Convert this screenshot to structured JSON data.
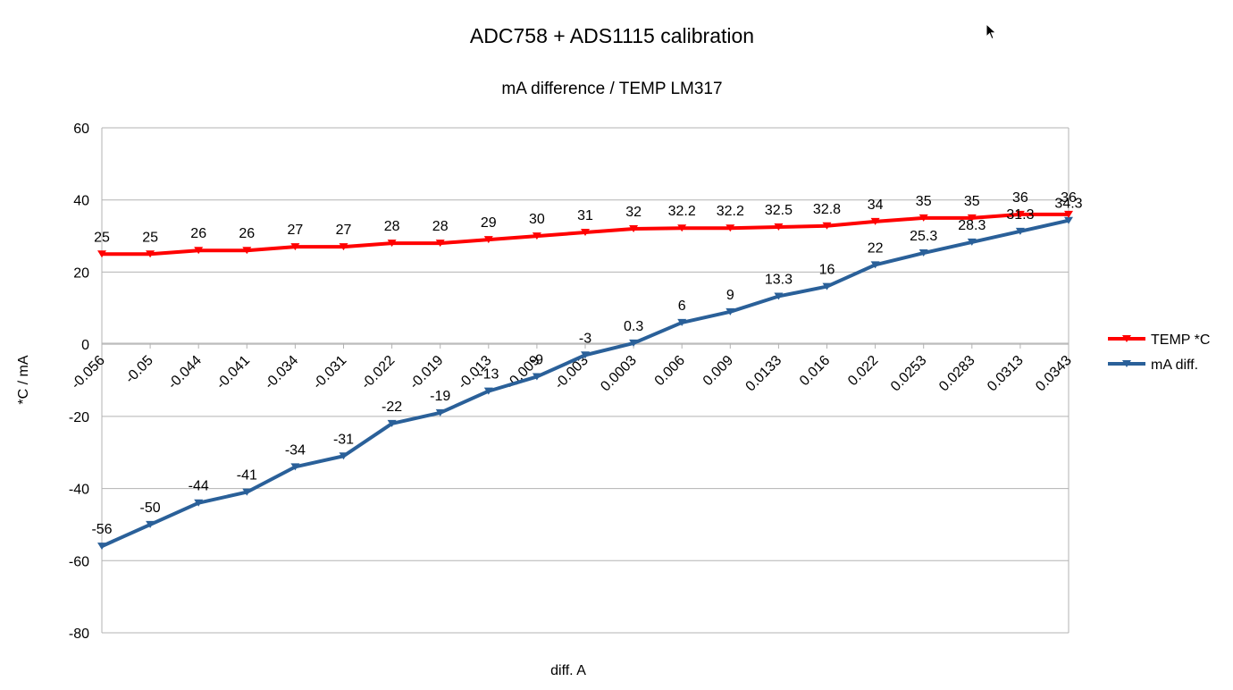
{
  "chart_data": {
    "type": "line",
    "title": "ADC758 + ADS1115 calibration",
    "subtitle": "mA difference / TEMP LM317",
    "xlabel": "diff. A",
    "ylabel": "*C / mA",
    "ylim": [
      -80,
      60
    ],
    "yticks": [
      "60",
      "40",
      "20",
      "0",
      "-20",
      "-40",
      "-60",
      "-80"
    ],
    "ytick_values": [
      60,
      40,
      20,
      0,
      -20,
      -40,
      -60,
      -80
    ],
    "categories": [
      "-0.056",
      "-0.05",
      "-0.044",
      "-0.041",
      "-0.034",
      "-0.031",
      "-0.022",
      "-0.019",
      "-0.013",
      "-0.009",
      "-0.003",
      "0.0003",
      "0.006",
      "0.009",
      "0.0133",
      "0.016",
      "0.022",
      "0.0253",
      "0.0283",
      "0.0313",
      "0.0343"
    ],
    "grid": true,
    "legend_position": "right",
    "series": [
      {
        "name": "TEMP *C",
        "color": "#ff0000",
        "values": [
          25,
          25,
          26,
          26,
          27,
          27,
          28,
          28,
          29,
          30,
          31,
          32,
          32.2,
          32.2,
          32.5,
          32.8,
          34,
          35,
          35,
          36,
          36
        ],
        "labels": [
          "25",
          "25",
          "26",
          "26",
          "27",
          "27",
          "28",
          "28",
          "29",
          "30",
          "31",
          "32",
          "32.2",
          "32.2",
          "32.5",
          "32.8",
          "34",
          "35",
          "35",
          "36",
          "36"
        ]
      },
      {
        "name": "mA diff.",
        "color": "#2a6099",
        "values": [
          -56,
          -50,
          -44,
          -41,
          -34,
          -31,
          -22,
          -19,
          -13,
          -9,
          -3,
          0.3,
          6,
          9,
          13.3,
          16,
          22,
          25.3,
          28.3,
          31.3,
          34.3
        ],
        "labels": [
          "-56",
          "-50",
          "-44",
          "-41",
          "-34",
          "-31",
          "-22",
          "-19",
          "-13",
          "-9",
          "-3",
          "0.3",
          "6",
          "9",
          "13.3",
          "16",
          "22",
          "25.3",
          "28.3",
          "31.3",
          "34.3"
        ]
      }
    ]
  }
}
